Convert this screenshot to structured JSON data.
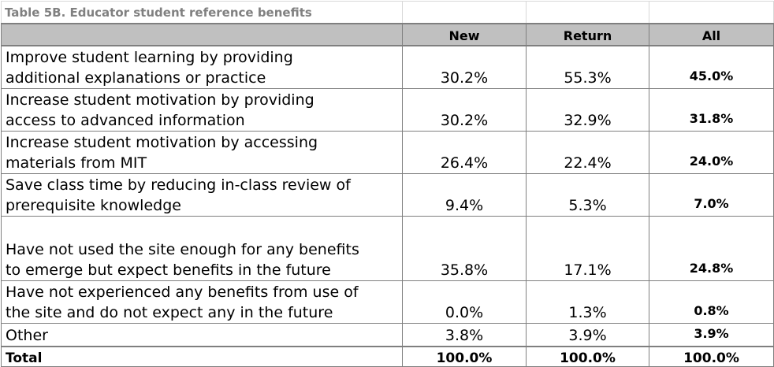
{
  "table": {
    "title": "Table 5B. Educator student reference benefits",
    "headers": [
      "",
      "New",
      "Return",
      "All"
    ],
    "rows": [
      {
        "label_lines": [
          "Improve student learning by providing",
          "additional explanations or practice"
        ],
        "new": "30.2%",
        "return": "55.3%",
        "all": "45.0%",
        "height": 54
      },
      {
        "label_lines": [
          "Increase student motivation by providing",
          "access to advanced information"
        ],
        "new": "30.2%",
        "return": "32.9%",
        "all": "31.8%",
        "height": 54
      },
      {
        "label_lines": [
          "Increase student motivation by accessing",
          "materials from MIT"
        ],
        "new": "26.4%",
        "return": "22.4%",
        "all": "24.0%",
        "height": 54
      },
      {
        "label_lines": [
          "Save class time by reducing in-class review of",
          "prerequisite knowledge"
        ],
        "new": "9.4%",
        "return": "5.3%",
        "all": "7.0%",
        "height": 54
      },
      {
        "label_lines": [
          "Have not used the site enough for any benefits",
          "to emerge but expect benefits in the future"
        ],
        "new": "35.8%",
        "return": "17.1%",
        "all": "24.8%",
        "height": 82
      },
      {
        "label_lines": [
          "Have not experienced any benefits from use of",
          "the site and do not expect any in the future"
        ],
        "new": "0.0%",
        "return": "1.3%",
        "all": "0.8%",
        "height": 54
      },
      {
        "label_lines": [
          "Other"
        ],
        "new": "3.8%",
        "return": "3.9%",
        "all": "3.9%",
        "height": 27
      }
    ],
    "total": {
      "label": "Total",
      "new": "100.0%",
      "return": "100.0%",
      "all": "100.0%"
    }
  }
}
